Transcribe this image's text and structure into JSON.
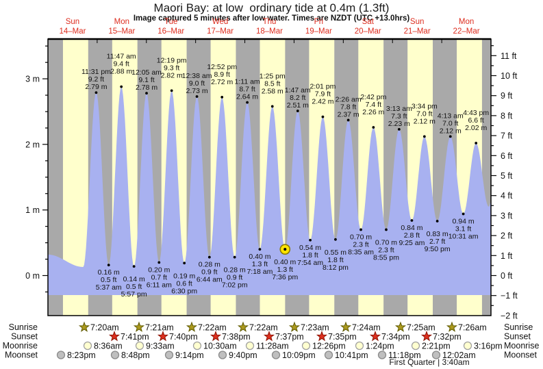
{
  "chart_data": {
    "type": "area",
    "title": "Maori Bay: at low  ordinary tide at 0.4m (1.3ft)",
    "subtitle": "Image captured 5 minutes after low water. Times are NZDT (UTC +13.0hrs)",
    "x_axis": {
      "days": [
        {
          "name": "Sun",
          "date": "14–Mar"
        },
        {
          "name": "Mon",
          "date": "15–Mar"
        },
        {
          "name": "Tue",
          "date": "16–Mar"
        },
        {
          "name": "Wed",
          "date": "17–Mar"
        },
        {
          "name": "Thu",
          "date": "18–Mar"
        },
        {
          "name": "Fri",
          "date": "19–Mar"
        },
        {
          "name": "Sat",
          "date": "20–Mar"
        },
        {
          "name": "Sun",
          "date": "21–Mar"
        },
        {
          "name": "Mon",
          "date": "22–Mar"
        }
      ]
    },
    "y_axis_left": {
      "unit": "m",
      "ticks": [
        0,
        1,
        2,
        3
      ]
    },
    "y_axis_right": {
      "unit": "ft",
      "min": -2,
      "max": 11
    },
    "daylight_hours": {
      "start": 7.33,
      "end": 19.63
    },
    "highs": [
      {
        "t_hours": 23.517,
        "height_m": 2.79,
        "time": "11:31 pm",
        "ft": "9.2 ft",
        "m": "2.79 m"
      },
      {
        "t_hours": 35.783,
        "height_m": 2.88,
        "time": "11:47 am",
        "ft": "9.4 ft",
        "m": "2.88 m"
      },
      {
        "t_hours": 48.083,
        "height_m": 2.78,
        "time": "12:05 am",
        "ft": "9.1 ft",
        "m": "2.78 m"
      },
      {
        "t_hours": 60.317,
        "height_m": 2.82,
        "time": "12:19 pm",
        "ft": "9.3 ft",
        "m": "2.82 m"
      },
      {
        "t_hours": 72.633,
        "height_m": 2.73,
        "time": "12:38 am",
        "ft": "9.0 ft",
        "m": "2.73 m"
      },
      {
        "t_hours": 84.867,
        "height_m": 2.72,
        "time": "12:52 pm",
        "ft": "8.9 ft",
        "m": "2.72 m"
      },
      {
        "t_hours": 97.183,
        "height_m": 2.64,
        "time": "1:11 am",
        "ft": "8.7 ft",
        "m": "2.64 m"
      },
      {
        "t_hours": 109.417,
        "height_m": 2.58,
        "time": "1:25 pm",
        "ft": "8.5 ft",
        "m": "2.58 m"
      },
      {
        "t_hours": 121.783,
        "height_m": 2.51,
        "time": "1:47 am",
        "ft": "8.2 ft",
        "m": "2.51 m"
      },
      {
        "t_hours": 134.017,
        "height_m": 2.42,
        "time": "2:01 pm",
        "ft": "7.9 ft",
        "m": "2.42 m"
      },
      {
        "t_hours": 146.433,
        "height_m": 2.37,
        "time": "2:26 am",
        "ft": "7.8 ft",
        "m": "2.37 m"
      },
      {
        "t_hours": 158.7,
        "height_m": 2.26,
        "time": "2:42 pm",
        "ft": "7.4 ft",
        "m": "2.26 m"
      },
      {
        "t_hours": 171.217,
        "height_m": 2.23,
        "time": "3:13 am",
        "ft": "7.3 ft",
        "m": "2.23 m"
      },
      {
        "t_hours": 183.567,
        "height_m": 2.12,
        "time": "3:34 pm",
        "ft": "7.0 ft",
        "m": "2.12 m"
      },
      {
        "t_hours": 196.217,
        "height_m": 2.12,
        "time": "4:13 am",
        "ft": "7.0 ft",
        "m": "2.12 m"
      },
      {
        "t_hours": 208.717,
        "height_m": 2.02,
        "time": "4:43 pm",
        "ft": "6.6 ft",
        "m": "2.02 m"
      }
    ],
    "lows": [
      {
        "t_hours": 29.617,
        "height_m": 0.16,
        "m": "0.16 m",
        "ft": "0.5 ft",
        "time": "5:37 am"
      },
      {
        "t_hours": 41.95,
        "height_m": 0.14,
        "m": "0.14 m",
        "ft": "0.5 ft",
        "time": "5:57 pm"
      },
      {
        "t_hours": 54.183,
        "height_m": 0.2,
        "m": "0.20 m",
        "ft": "0.7 ft",
        "time": "6:11 am"
      },
      {
        "t_hours": 66.5,
        "height_m": 0.19,
        "m": "0.19 m",
        "ft": "0.6 ft",
        "time": "6:30 pm"
      },
      {
        "t_hours": 78.733,
        "height_m": 0.28,
        "m": "0.28 m",
        "ft": "0.9 ft",
        "time": "6:44 am"
      },
      {
        "t_hours": 91.033,
        "height_m": 0.28,
        "m": "0.28 m",
        "ft": "0.9 ft",
        "time": "7:02 pm"
      },
      {
        "t_hours": 103.3,
        "height_m": 0.4,
        "m": "0.40 m",
        "ft": "1.3 ft",
        "time": "7:18 am"
      },
      {
        "t_hours": 115.6,
        "height_m": 0.4,
        "m": "0.40 m",
        "ft": "1.3 ft",
        "time": "7:36 pm",
        "marked": true
      },
      {
        "t_hours": 127.9,
        "height_m": 0.54,
        "m": "0.54 m",
        "ft": "1.8 ft",
        "time": "7:54 am"
      },
      {
        "t_hours": 140.2,
        "height_m": 0.55,
        "m": "0.55 m",
        "ft": "1.8 ft",
        "time": "8:12 pm"
      },
      {
        "t_hours": 152.583,
        "height_m": 0.7,
        "m": "0.70 m",
        "ft": "2.3 ft",
        "time": "8:35 am"
      },
      {
        "t_hours": 164.917,
        "height_m": 0.7,
        "m": "0.70 m",
        "ft": "2.3 ft",
        "time": "8:55 pm"
      },
      {
        "t_hours": 177.417,
        "height_m": 0.84,
        "m": "0.84 m",
        "ft": "2.8 ft",
        "time": "9:25 am"
      },
      {
        "t_hours": 189.833,
        "height_m": 0.83,
        "m": "0.83 m",
        "ft": "2.7 ft",
        "time": "9:50 pm"
      },
      {
        "t_hours": 202.517,
        "height_m": 0.94,
        "m": "0.94 m",
        "ft": "3.1 ft",
        "time": "10:31 am"
      }
    ],
    "astro": {
      "rows": [
        {
          "label": "Sunrise",
          "icon": "sunrise-star",
          "times": [
            "7:20am",
            "7:21am",
            "7:22am",
            "7:22am",
            "7:23am",
            "7:24am",
            "7:25am",
            "7:26am"
          ],
          "x": [
            123,
            203,
            280,
            355,
            430,
            505,
            585,
            660
          ]
        },
        {
          "label": "Sunset",
          "icon": "sunset-star",
          "times": [
            "7:41pm",
            "7:40pm",
            "7:38pm",
            "7:37pm",
            "7:35pm",
            "7:34pm",
            "7:32pm"
          ],
          "x": [
            167,
            238,
            315,
            393,
            470,
            548,
            623
          ]
        },
        {
          "label": "Moonrise",
          "icon": "moonrise-circle",
          "times": [
            "8:36am",
            "9:33am",
            "10:30am",
            "11:28am",
            "12:26pm",
            "1:24pm",
            "2:21pm",
            "3:16pm"
          ],
          "x": [
            128,
            204,
            288,
            365,
            447,
            525,
            607,
            683
          ]
        },
        {
          "label": "Moonset",
          "icon": "moonset-circle",
          "times": [
            "8:23pm",
            "8:48pm",
            "9:14pm",
            "9:40pm",
            "10:09pm",
            "10:41pm",
            "11:18pm",
            "12:02am"
          ],
          "x": [
            89,
            168,
            247,
            325,
            403,
            480,
            558,
            637
          ]
        }
      ],
      "moon_note": "First Quarter | 3:40am"
    },
    "colors": {
      "tide_fill": "#a8b1f0",
      "day_band": "#ffffcc",
      "night_band": "#a9a9a9",
      "day_label": "#dd2c1e",
      "marker_fill": "#ffe400",
      "marker_ring": "#8a7a00",
      "sunrise_star": "#ac9a1e",
      "sunrise_star_edge": "#5f5a00",
      "sunset_star": "#dd2f1e",
      "sunset_star_edge": "#8d1405",
      "moonrise_fill": "#ffffd0",
      "moonrise_edge": "#a0a0a0",
      "moonset_fill": "#bfbfbf",
      "moonset_edge": "#8a8a8a",
      "text": "#111111"
    }
  }
}
